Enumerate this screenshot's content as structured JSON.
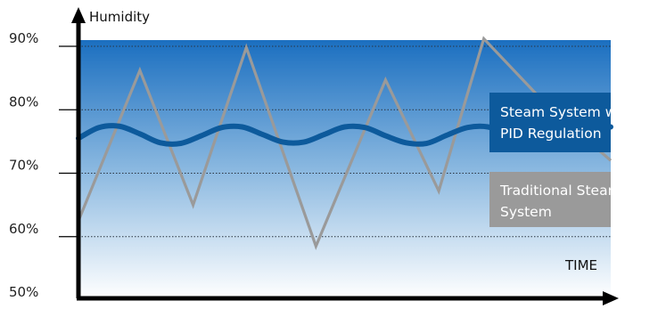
{
  "chart_data": {
    "type": "line",
    "ylabel": "Humidity",
    "xlabel": "TIME",
    "y_ticks": [
      "50%",
      "60%",
      "70%",
      "80%",
      "90%"
    ],
    "y_tick_values": [
      50,
      60,
      70,
      80,
      90
    ],
    "ylim": [
      50,
      90
    ],
    "grid": "horizontal dotted",
    "legend_placement": "right",
    "series": [
      {
        "name": "Steam System with PID Regulation",
        "legend_lines": [
          "Steam System with",
          "PID Regulation"
        ],
        "color": "#0d5a9c",
        "x": [
          0,
          2.5,
          5,
          7.5,
          10,
          12.5,
          15,
          17.5,
          20,
          22.5,
          25,
          27.5,
          30,
          32.5,
          35,
          37.5,
          40,
          42.5,
          45,
          47.5,
          50,
          52.5,
          55,
          57.5,
          60,
          62.5,
          65
        ],
        "values": [
          75.5,
          77.2,
          77.4,
          76.2,
          74.8,
          74.7,
          75.9,
          77.2,
          77.3,
          76.1,
          74.9,
          74.9,
          76.1,
          77.3,
          77.2,
          75.9,
          74.8,
          74.7,
          76.0,
          77.2,
          77.3,
          76.1,
          74.8,
          74.8,
          76.0,
          77.1,
          77.3
        ]
      },
      {
        "name": "Traditional Steam System",
        "legend_lines": [
          "Traditional Steam",
          "System"
        ],
        "color": "#9a9a9a",
        "x": [
          0,
          7.5,
          14,
          20.5,
          29,
          37.5,
          44,
          49.5,
          57,
          65
        ],
        "values": [
          62.5,
          86.2,
          65,
          89.8,
          58.5,
          84.7,
          67.2,
          91.2,
          81,
          72
        ]
      }
    ],
    "colors": {
      "plot_gradient_top": "#1b6fc0",
      "plot_gradient_mid": "#8ab8e0",
      "plot_gradient_bottom": "#ffffff",
      "axis": "#000000",
      "legend_pid_bg": "#0d5a9c",
      "legend_traditional_bg": "#9a9a9a"
    }
  }
}
